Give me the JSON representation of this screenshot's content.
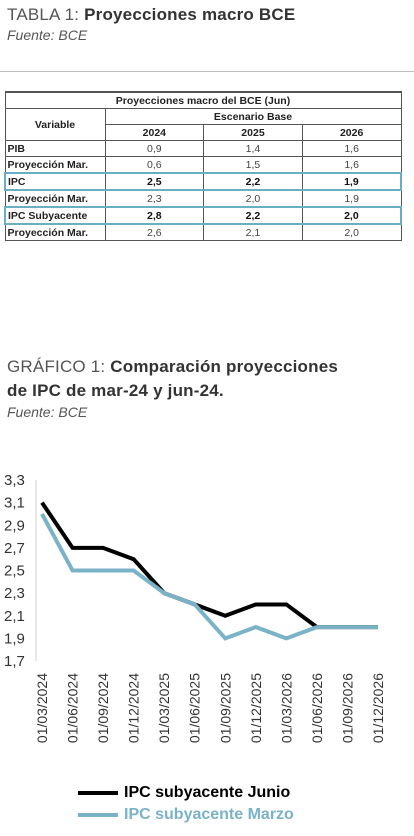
{
  "table_section": {
    "title_lead": "TABLA 1: ",
    "title_main": "Proyecciones macro BCE",
    "source": "Fuente: BCE"
  },
  "table": {
    "caption": "Proyecciones macro del BCE (Jun)",
    "variable_header": "Variable",
    "scenario_header": "Escenario Base",
    "years": [
      "2024",
      "2025",
      "2026"
    ],
    "rows": [
      {
        "label": "PIB",
        "values": [
          "0,9",
          "1,4",
          "1,6"
        ],
        "highlight": false
      },
      {
        "label": "Proyección Mar.",
        "values": [
          "0,6",
          "1,5",
          "1,6"
        ],
        "highlight": false
      },
      {
        "label": "IPC",
        "values": [
          "2,5",
          "2,2",
          "1,9"
        ],
        "highlight": true
      },
      {
        "label": "Proyección Mar.",
        "values": [
          "2,3",
          "2,0",
          "1,9"
        ],
        "highlight": false
      },
      {
        "label": "IPC Subyacente",
        "values": [
          "2,8",
          "2,2",
          "2,0"
        ],
        "highlight": true
      },
      {
        "label": "Proyección Mar.",
        "values": [
          "2,6",
          "2,1",
          "2,0"
        ],
        "highlight": false
      }
    ]
  },
  "chart_section": {
    "title_lead": "GRÁFICO 1: ",
    "title_main_line1": "Comparación proyecciones",
    "title_main_line2": "de IPC de mar-24 y jun-24.",
    "source": "Fuente: BCE"
  },
  "chart_data": {
    "type": "line",
    "x": [
      "01/03/2024",
      "01/06/2024",
      "01/09/2024",
      "01/12/2024",
      "01/03/2025",
      "01/06/2025",
      "01/09/2025",
      "01/12/2025",
      "01/03/2026",
      "01/06/2026",
      "01/09/2026",
      "01/12/2026"
    ],
    "series": [
      {
        "name": "IPC subyacente Junio",
        "color": "#000000",
        "values": [
          3.1,
          2.7,
          2.7,
          2.6,
          2.3,
          2.2,
          2.1,
          2.2,
          2.2,
          2.0,
          2.0,
          2.0
        ]
      },
      {
        "name": "IPC subyacente Marzo",
        "color": "#7ab3c8",
        "values": [
          3.0,
          2.5,
          2.5,
          2.5,
          2.3,
          2.2,
          1.9,
          2.0,
          1.9,
          2.0,
          2.0,
          2.0
        ]
      }
    ],
    "ylim": [
      1.7,
      3.3
    ],
    "yticks": [
      "1,7",
      "1,9",
      "2,1",
      "2,3",
      "2,5",
      "2,7",
      "2,9",
      "3,1",
      "3,3"
    ],
    "grid": false,
    "legend_position": "bottom"
  }
}
